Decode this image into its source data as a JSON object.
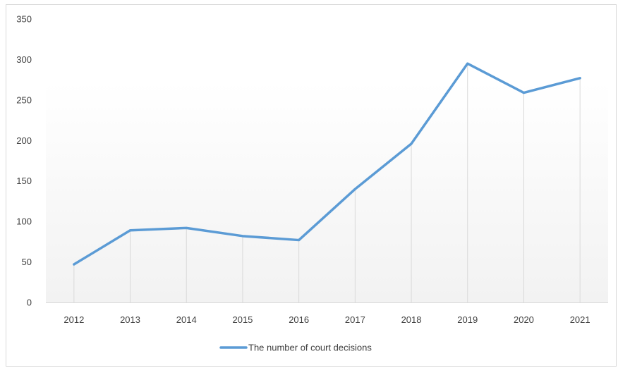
{
  "chart_data": {
    "type": "line",
    "categories": [
      "2012",
      "2013",
      "2014",
      "2015",
      "2016",
      "2017",
      "2018",
      "2019",
      "2020",
      "2021"
    ],
    "series": [
      {
        "name": "The number of court decisions",
        "color": "#5b9bd5",
        "values": [
          47,
          89,
          92,
          82,
          77,
          140,
          196,
          295,
          259,
          277
        ]
      }
    ],
    "ylim": [
      0,
      350
    ],
    "yticks": [
      0,
      50,
      100,
      150,
      200,
      250,
      300,
      350
    ],
    "title": "",
    "xlabel": "",
    "ylabel": "",
    "grid": "vertical drop lines",
    "legend": "bottom-center",
    "colors": {
      "background_gradient_top": "#ffffff",
      "background_gradient_bottom": "#f2f2f2",
      "drop_line": "#d9d9d9",
      "axis_line": "#d9d9d9"
    }
  }
}
